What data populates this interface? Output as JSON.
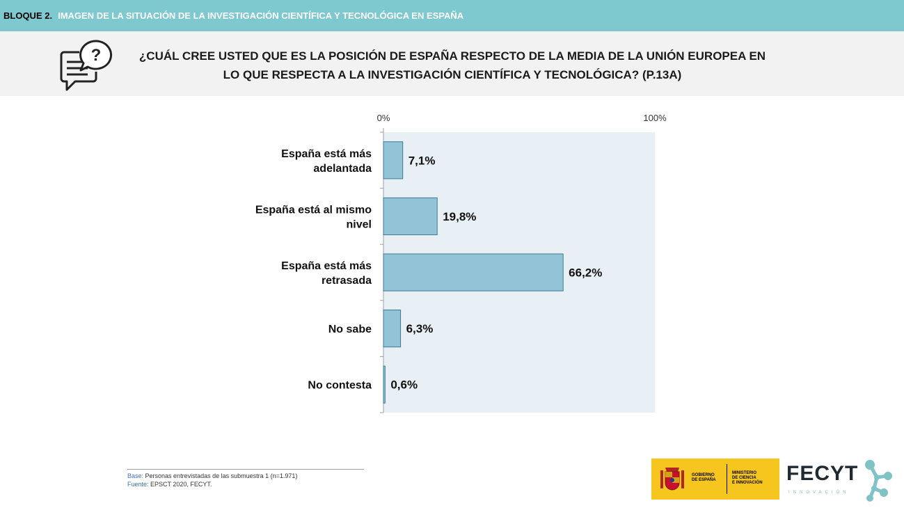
{
  "header": {
    "block_label": "BLOQUE 2.",
    "block_title": "IMAGEN DE LA SITUACIÓN DE LA INVESTIGACIÓN CIENTÍFICA Y TECNOLÓGICA EN ESPAÑA"
  },
  "question": {
    "line1": "¿CUÁL CREE USTED QUE ES LA POSICIÓN DE ESPAÑA RESPECTO DE LA MEDIA DE LA UNIÓN EUROPEA EN",
    "line2": "LO QUE RESPECTA A LA INVESTIGACIÓN CIENTÍFICA Y TECNOLÓGICA? (P.13A)",
    "icon": "chat-question-icon"
  },
  "chart_data": {
    "type": "bar",
    "orientation": "horizontal",
    "categories": [
      [
        "España está más",
        "adelantada"
      ],
      [
        "España está al mismo",
        "nivel"
      ],
      [
        "España está más",
        "retrasada"
      ],
      [
        "No sabe"
      ],
      [
        "No contesta"
      ]
    ],
    "values": [
      7.1,
      19.8,
      66.2,
      6.3,
      0.6
    ],
    "value_labels": [
      "7,1%",
      "19,8%",
      "66,2%",
      "6,3%",
      "0,6%"
    ],
    "xlim": [
      0,
      100
    ],
    "axis_labels": [
      "0%",
      "100%"
    ],
    "bar_color": "#92c3d6",
    "bar_edge_color": "#3d7a93",
    "plot_bg": "#e9f0f5"
  },
  "footer": {
    "base_key": "Base:",
    "base_text": "Personas entrevistadas de las submuestra 1 (n=1.971)",
    "source_key": "Fuente:",
    "source_text": "EPSCT 2020, FECYT."
  },
  "logos": {
    "gov_line1": "GOBIERNO",
    "gov_line2": "DE ESPAÑA",
    "min_line1": "MINISTERIO",
    "min_line2": "DE CIENCIA",
    "min_line3": "E INNOVACIÓN",
    "fecyt_name": "FECYT",
    "fecyt_sub": "INNOVACIÓN",
    "gov_color": "#f7c61e"
  }
}
